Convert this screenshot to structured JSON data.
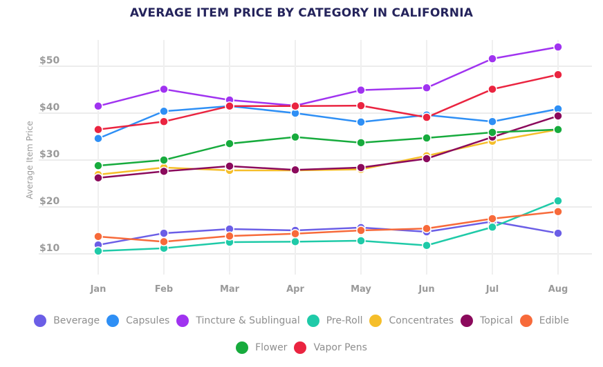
{
  "chart_data": {
    "type": "line",
    "title": "AVERAGE ITEM PRICE BY CATEGORY IN CALIFORNIA",
    "xlabel": "",
    "ylabel": "Average Item Price",
    "categories": [
      "Jan",
      "Feb",
      "Mar",
      "Apr",
      "May",
      "Jun",
      "Jul",
      "Aug"
    ],
    "y_ticks": [
      10,
      20,
      30,
      40,
      50
    ],
    "y_tick_labels": [
      "$10",
      "$20",
      "$30",
      "$40",
      "$50"
    ],
    "ylim": [
      4,
      55
    ],
    "grid": true,
    "legend_position": "bottom",
    "series": [
      {
        "name": "Beverage",
        "color": "#6b5ee6",
        "values": [
          11.9,
          14.4,
          15.3,
          15.0,
          15.6,
          14.7,
          16.9,
          14.4
        ]
      },
      {
        "name": "Capsules",
        "color": "#2e8ff5",
        "values": [
          34.6,
          40.4,
          41.5,
          40.0,
          38.1,
          39.6,
          38.2,
          40.9
        ]
      },
      {
        "name": "Tincture & Sublingual",
        "color": "#a033f0",
        "values": [
          41.5,
          45.1,
          42.8,
          41.6,
          44.9,
          45.4,
          51.6,
          54.1
        ]
      },
      {
        "name": "Pre-Roll",
        "color": "#1fcaa8",
        "values": [
          10.6,
          11.2,
          12.5,
          12.6,
          12.8,
          11.8,
          15.7,
          21.3
        ]
      },
      {
        "name": "Concentrates",
        "color": "#f5be2a",
        "values": [
          26.9,
          28.4,
          27.8,
          27.8,
          28.0,
          30.9,
          34.0,
          36.5
        ]
      },
      {
        "name": "Topical",
        "color": "#8b0a5c",
        "values": [
          26.2,
          27.6,
          28.7,
          27.9,
          28.4,
          30.3,
          34.9,
          39.4
        ]
      },
      {
        "name": "Edible",
        "color": "#f76a3a",
        "values": [
          13.7,
          12.6,
          13.8,
          14.3,
          15.0,
          15.4,
          17.5,
          19.0
        ]
      },
      {
        "name": "Flower",
        "color": "#17ab3d",
        "values": [
          28.8,
          30.0,
          33.5,
          34.9,
          33.7,
          34.7,
          35.9,
          36.5
        ]
      },
      {
        "name": "Vapor Pens",
        "color": "#ea2440",
        "values": [
          36.5,
          38.2,
          41.5,
          41.5,
          41.6,
          39.1,
          45.1,
          48.2
        ]
      }
    ]
  }
}
